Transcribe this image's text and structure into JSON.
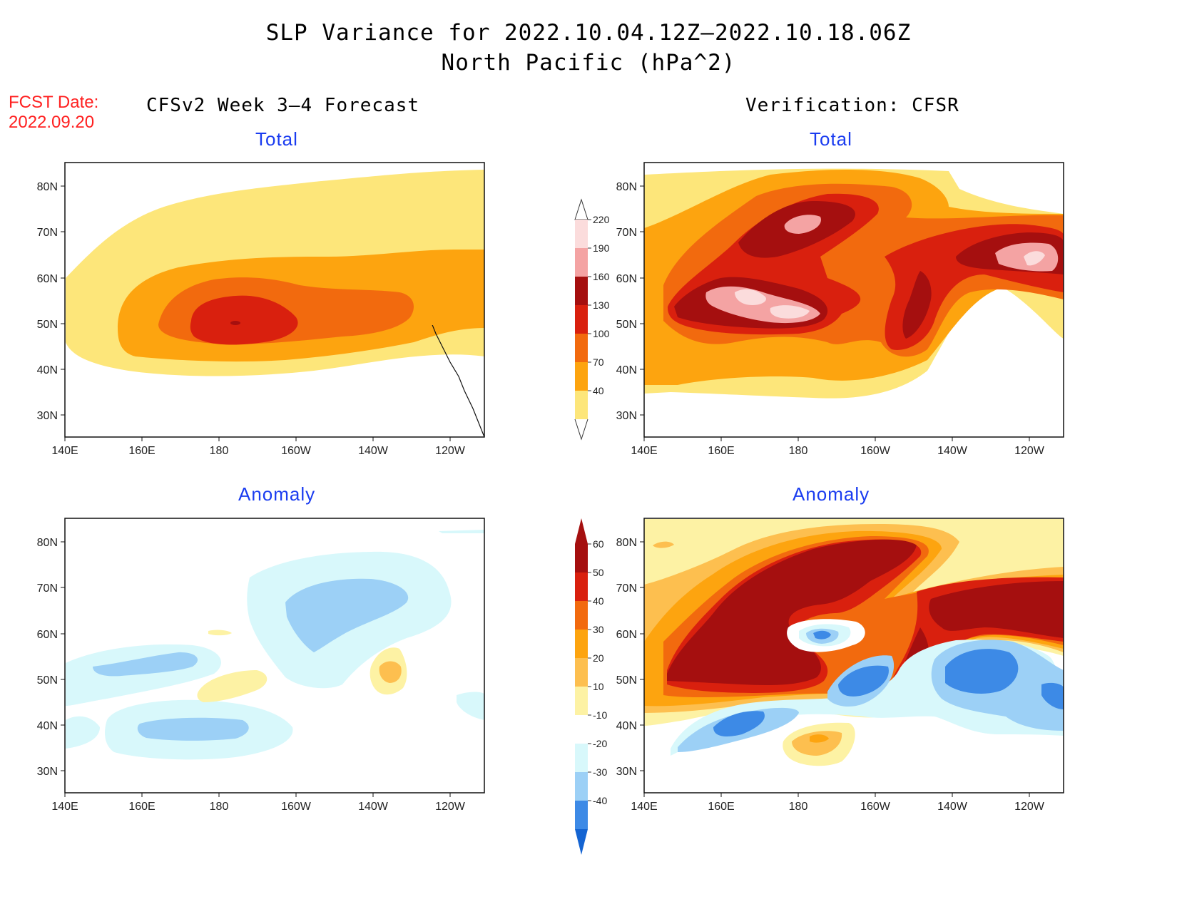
{
  "title": {
    "line1": "SLP Variance for 2022.10.04.12Z–2022.10.18.06Z",
    "line2": "North Pacific (hPa^2)"
  },
  "fcst": {
    "label": "FCST Date:",
    "date": "2022.09.20"
  },
  "columns": {
    "left": "CFSv2 Week 3–4 Forecast",
    "right": "Verification: CFSR"
  },
  "panels": [
    {
      "id": "fcst-total",
      "subtitle": "Total"
    },
    {
      "id": "cfsr-total",
      "subtitle": "Total"
    },
    {
      "id": "fcst-anomaly",
      "subtitle": "Anomaly"
    },
    {
      "id": "cfsr-anomaly",
      "subtitle": "Anomaly"
    }
  ],
  "axes": {
    "lon_labels": [
      "140E",
      "160E",
      "180",
      "160W",
      "140W",
      "120W"
    ],
    "lat_labels": [
      "80N",
      "70N",
      "60N",
      "50N",
      "40N",
      "30N"
    ]
  },
  "colorbars": {
    "total": {
      "levels": [
        "220",
        "190",
        "160",
        "130",
        "100",
        "70",
        "40"
      ],
      "colors": [
        "#fbdcdc",
        "#f4a3a3",
        "#a50f0f",
        "#d9200e",
        "#f26a0e",
        "#fda40f",
        "#fde67a"
      ]
    },
    "anomaly": {
      "levels": [
        "60",
        "50",
        "40",
        "30",
        "20",
        "10",
        "-10",
        "-20",
        "-30",
        "-40"
      ],
      "colors": [
        "#a50f0f",
        "#d9200e",
        "#f26a0e",
        "#fda40f",
        "#fdbf4f",
        "#fdf2a4",
        "#ffffff",
        "#d8f8fb",
        "#9cd0f6",
        "#3d8ae6",
        "#1464d2"
      ]
    }
  }
}
